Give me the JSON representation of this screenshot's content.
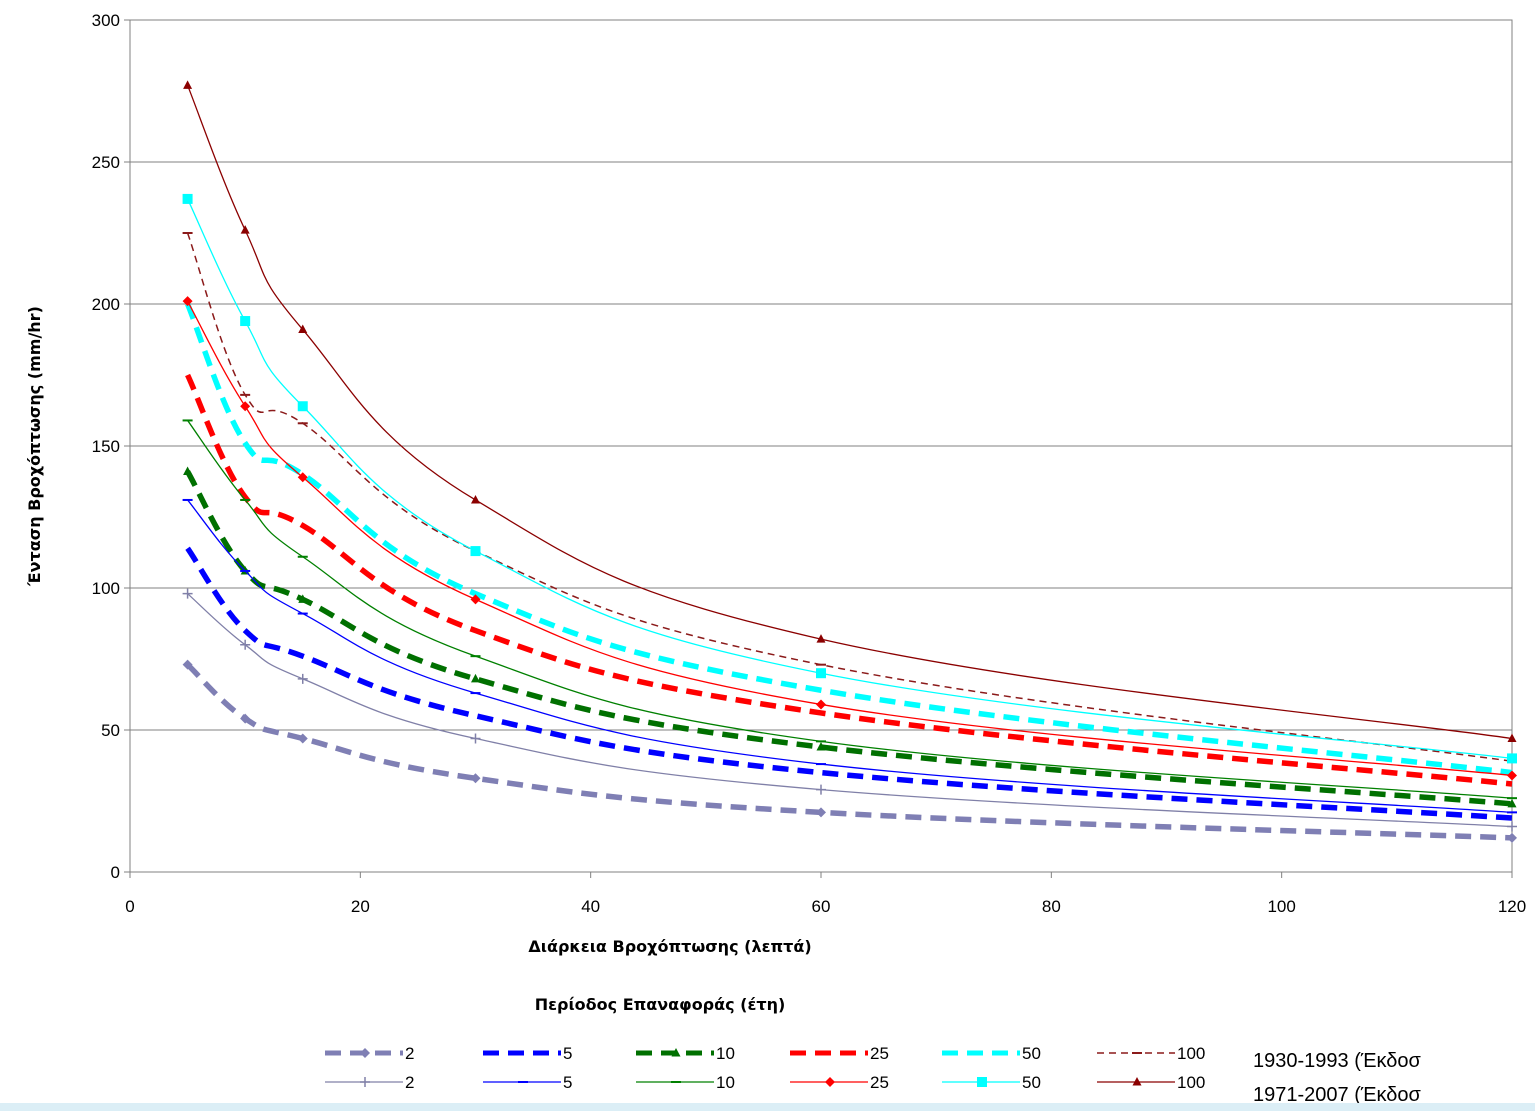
{
  "chart_data": {
    "type": "line",
    "xlabel": "Διάρκεια Βροχόπτωσης (λεπτά)",
    "ylabel": "Ένταση Βροχόπτωσης (mm/hr)",
    "legend_title": "Περίοδος Επαναφοράς (έτη)",
    "xlim": [
      0,
      120
    ],
    "ylim": [
      0,
      300
    ],
    "x_ticks": [
      "0",
      "20",
      "40",
      "60",
      "80",
      "100",
      "120"
    ],
    "y_ticks": [
      "0",
      "50",
      "100",
      "150",
      "200",
      "250",
      "300"
    ],
    "grid": "horizontal",
    "legend_placement": "bottom",
    "x": [
      5,
      10,
      15,
      30,
      60,
      120
    ],
    "series": [
      {
        "name": "2",
        "group": "1930-1993",
        "style": "dashed-thick",
        "color": "#7f7fb4",
        "marker": "diamond",
        "values": [
          73,
          54,
          47,
          33,
          21,
          12
        ]
      },
      {
        "name": "5",
        "group": "1930-1993",
        "style": "dashed-thick",
        "color": "#0000ff",
        "marker": "none",
        "values": [
          114,
          85,
          76,
          55,
          35,
          19
        ]
      },
      {
        "name": "10",
        "group": "1930-1993",
        "style": "dashed-thick",
        "color": "#007000",
        "marker": "triangle",
        "values": [
          141,
          106,
          96,
          68,
          44,
          24
        ]
      },
      {
        "name": "25",
        "group": "1930-1993",
        "style": "dashed-thick",
        "color": "#ff0000",
        "marker": "none",
        "values": [
          175,
          132,
          122,
          85,
          56,
          31
        ]
      },
      {
        "name": "50",
        "group": "1930-1993",
        "style": "dashed-thick",
        "color": "#00ffff",
        "marker": "none",
        "values": [
          200,
          151,
          140,
          98,
          64,
          35
        ]
      },
      {
        "name": "100",
        "group": "1930-1993",
        "style": "dashed-thin",
        "color": "#8b1a1a",
        "marker": "tick",
        "values": [
          225,
          168,
          158,
          113,
          73,
          39
        ]
      },
      {
        "name": "2",
        "group": "1971-2007",
        "style": "solid",
        "color": "#8080a8",
        "marker": "plus",
        "values": [
          98,
          80,
          68,
          47,
          29,
          16
        ]
      },
      {
        "name": "5",
        "group": "1971-2007",
        "style": "solid",
        "color": "#0000ff",
        "marker": "dash",
        "values": [
          131,
          106,
          91,
          63,
          38,
          21
        ]
      },
      {
        "name": "10",
        "group": "1971-2007",
        "style": "solid",
        "color": "#008000",
        "marker": "dash",
        "values": [
          159,
          131,
          111,
          76,
          46,
          26
        ]
      },
      {
        "name": "25",
        "group": "1971-2007",
        "style": "solid",
        "color": "#ff0000",
        "marker": "diamond",
        "values": [
          201,
          164,
          139,
          96,
          59,
          34
        ]
      },
      {
        "name": "50",
        "group": "1971-2007",
        "style": "solid",
        "color": "#00ffff",
        "marker": "square",
        "values": [
          237,
          194,
          164,
          113,
          70,
          40
        ]
      },
      {
        "name": "100",
        "group": "1971-2007",
        "style": "solid",
        "color": "#8b0000",
        "marker": "triangle",
        "values": [
          277,
          226,
          191,
          131,
          82,
          47
        ]
      }
    ],
    "notes": [
      "1930-1993 (Έκδοσ",
      "1971-2007 (Έκδοσ"
    ]
  }
}
